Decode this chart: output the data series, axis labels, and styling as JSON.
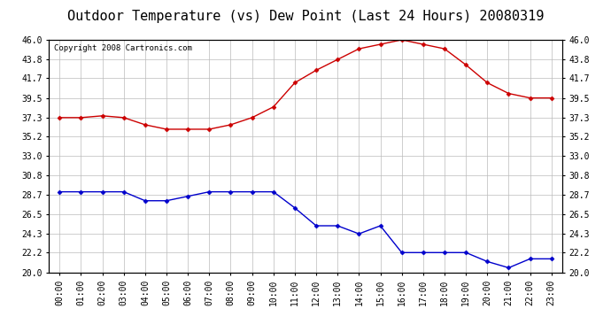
{
  "title": "Outdoor Temperature (vs) Dew Point (Last 24 Hours) 20080319",
  "copyright": "Copyright 2008 Cartronics.com",
  "x_labels": [
    "00:00",
    "01:00",
    "02:00",
    "03:00",
    "04:00",
    "05:00",
    "06:00",
    "07:00",
    "08:00",
    "09:00",
    "10:00",
    "11:00",
    "12:00",
    "13:00",
    "14:00",
    "15:00",
    "16:00",
    "17:00",
    "18:00",
    "19:00",
    "20:00",
    "21:00",
    "22:00",
    "23:00"
  ],
  "temp_data": [
    37.3,
    37.3,
    37.5,
    37.3,
    36.5,
    36.0,
    36.0,
    36.0,
    36.5,
    37.3,
    38.5,
    41.2,
    42.6,
    43.8,
    45.0,
    45.5,
    46.0,
    45.5,
    45.0,
    43.2,
    41.2,
    40.0,
    39.5,
    39.5
  ],
  "dew_data": [
    29.0,
    29.0,
    29.0,
    29.0,
    28.0,
    28.0,
    28.5,
    29.0,
    29.0,
    29.0,
    29.0,
    27.2,
    25.2,
    25.2,
    24.3,
    25.2,
    22.2,
    22.2,
    22.2,
    22.2,
    21.2,
    20.5,
    21.5,
    21.5
  ],
  "temp_color": "#cc0000",
  "dew_color": "#0000cc",
  "bg_color": "#ffffff",
  "plot_bg_color": "#ffffff",
  "grid_color": "#bbbbbb",
  "y_ticks": [
    20.0,
    22.2,
    24.3,
    26.5,
    28.7,
    30.8,
    33.0,
    35.2,
    37.3,
    39.5,
    41.7,
    43.8,
    46.0
  ],
  "ylim_min": 20.0,
  "ylim_max": 46.0,
  "title_fontsize": 11,
  "copyright_fontsize": 6.5,
  "tick_fontsize": 7,
  "figwidth": 6.9,
  "figheight": 3.75,
  "dpi": 100
}
